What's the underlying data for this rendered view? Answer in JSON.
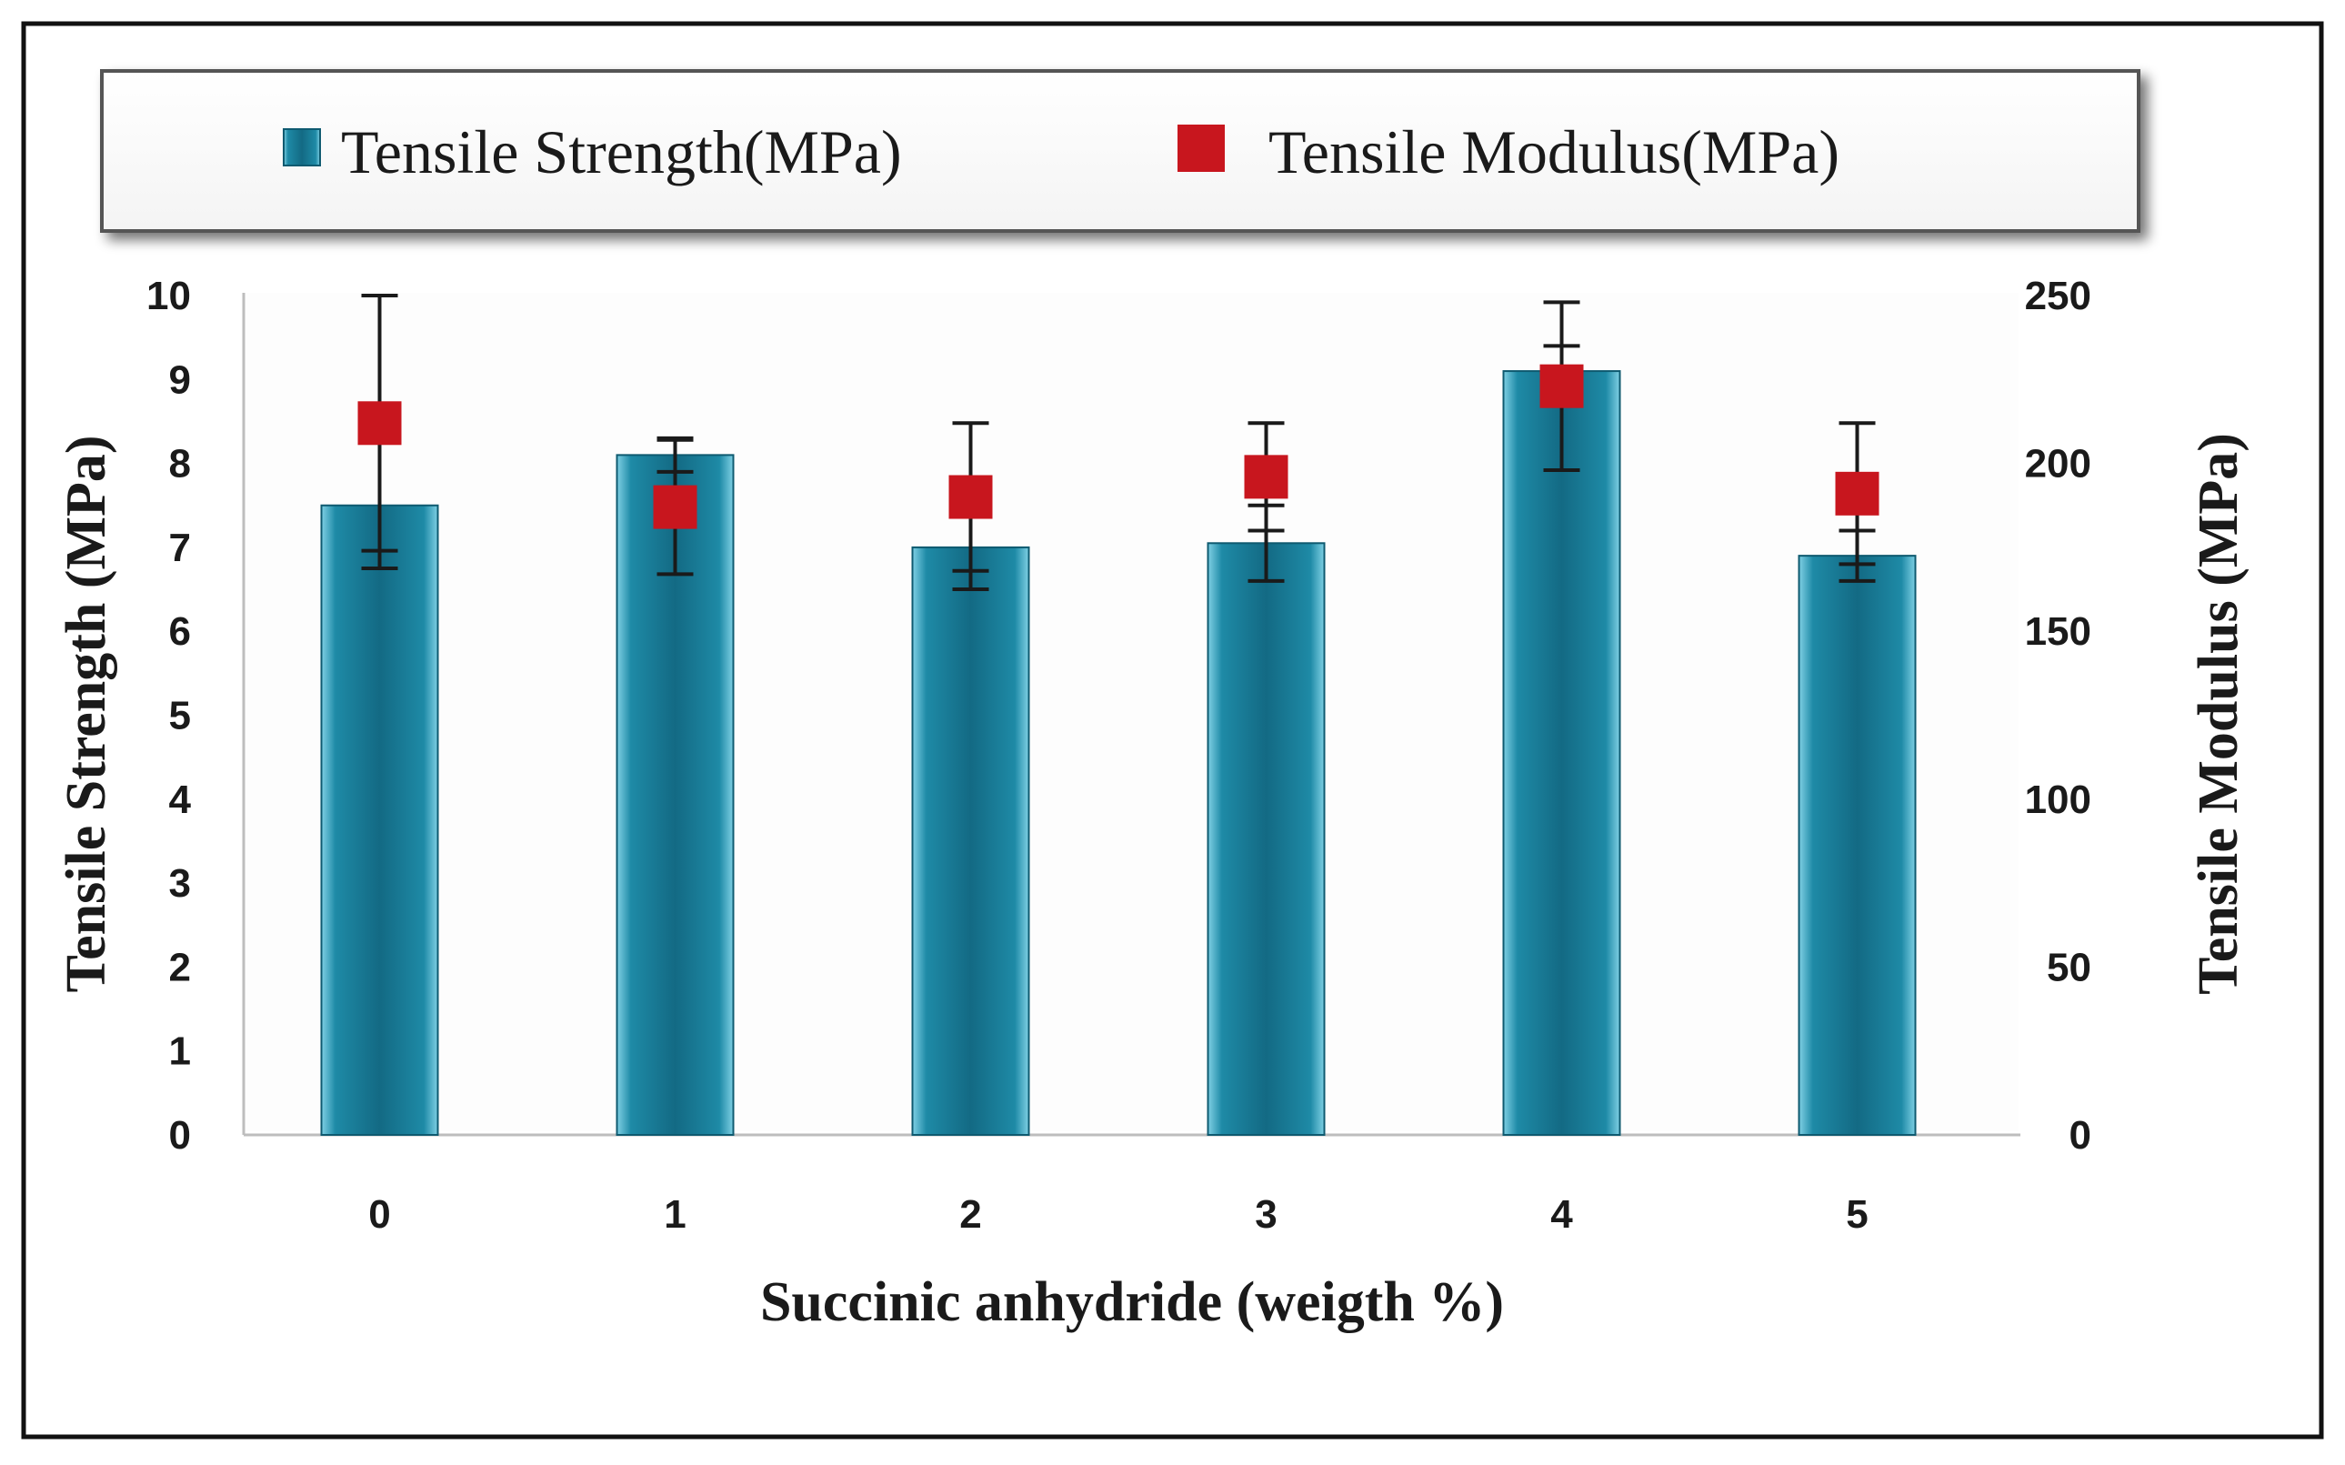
{
  "chart_data": {
    "type": "bar",
    "categories": [
      "0",
      "1",
      "2",
      "3",
      "4",
      "5"
    ],
    "xlabel": "Succinic anhydride (weigth %)",
    "ylabel_left": "Tensile Strength (MPa)",
    "ylabel_right": "Tensile Modulus (MPa)",
    "ylim_left": [
      0,
      10
    ],
    "yticks_left": [
      "0",
      "1",
      "2",
      "3",
      "4",
      "5",
      "6",
      "7",
      "8",
      "9",
      "10"
    ],
    "ylim_right": [
      0,
      250
    ],
    "yticks_right": [
      "0",
      "50",
      "100",
      "150",
      "200",
      "250"
    ],
    "legend_position": "top",
    "series": [
      {
        "name": "Tensile Strength(MPa)",
        "kind": "bar",
        "axis": "left",
        "color": "#1a7a94",
        "values": [
          7.5,
          8.1,
          7.0,
          7.05,
          9.1,
          6.9
        ],
        "error": [
          0.75,
          0.2,
          0.5,
          0.45,
          0.3,
          0.3
        ]
      },
      {
        "name": "Tensile Modulus(MPa)",
        "kind": "marker",
        "axis": "right",
        "color": "#c8161e",
        "values": [
          212,
          187,
          190,
          196,
          223,
          191
        ],
        "error": [
          38,
          20,
          22,
          16,
          25,
          21
        ]
      }
    ]
  }
}
